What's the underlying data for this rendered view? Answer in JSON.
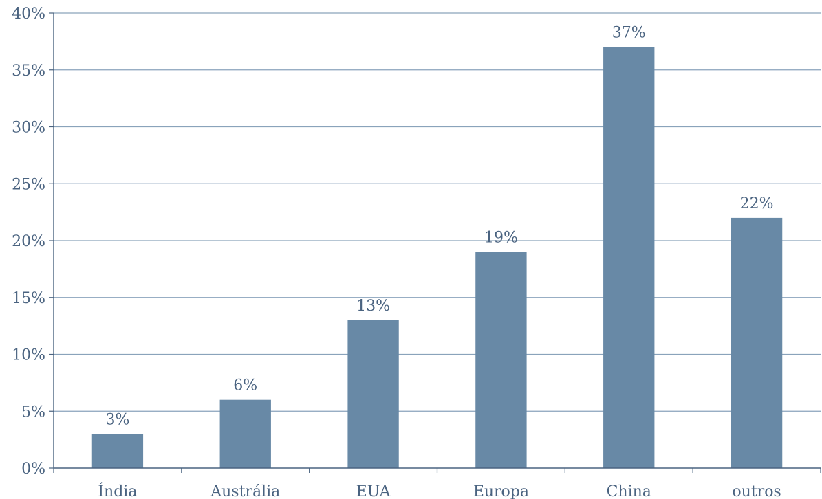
{
  "chart_data": {
    "type": "bar",
    "categories": [
      "Índia",
      "Austrália",
      "EUA",
      "Europa",
      "China",
      "outros"
    ],
    "values": [
      3,
      6,
      13,
      19,
      37,
      22
    ],
    "data_labels": [
      "3%",
      "6%",
      "13%",
      "19%",
      "37%",
      "22%"
    ],
    "title": "",
    "xlabel": "",
    "ylabel": "",
    "ylim": [
      0,
      40
    ],
    "yticks": [
      0,
      5,
      10,
      15,
      20,
      25,
      30,
      35,
      40
    ],
    "ytick_labels": [
      "0%",
      "5%",
      "10%",
      "15%",
      "20%",
      "25%",
      "30%",
      "35%",
      "40%"
    ],
    "grid": true,
    "legend": "none",
    "colors": {
      "bar": "#6889a6",
      "grid": "#8aa3bb",
      "axis": "#4a6380",
      "text": "#4a6380"
    }
  }
}
